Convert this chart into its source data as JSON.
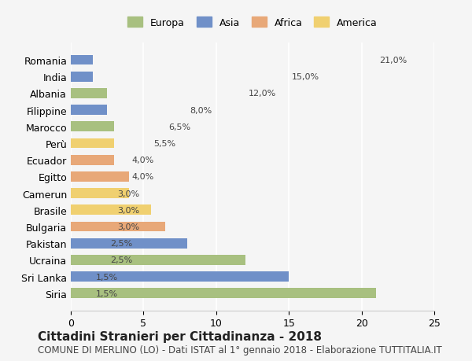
{
  "countries": [
    "Romania",
    "India",
    "Albania",
    "Filippine",
    "Marocco",
    "Perù",
    "Ecuador",
    "Egitto",
    "Camerun",
    "Brasile",
    "Bulgaria",
    "Pakistan",
    "Ucraina",
    "Sri Lanka",
    "Siria"
  ],
  "values": [
    21.0,
    15.0,
    12.0,
    8.0,
    6.5,
    5.5,
    4.0,
    4.0,
    3.0,
    3.0,
    3.0,
    2.5,
    2.5,
    1.5,
    1.5
  ],
  "continents": [
    "Europa",
    "Asia",
    "Europa",
    "Asia",
    "Africa",
    "America",
    "America",
    "Africa",
    "Africa",
    "America",
    "Europa",
    "Asia",
    "Europa",
    "Asia",
    "Asia"
  ],
  "continent_colors": {
    "Europa": "#a8c080",
    "Asia": "#7090c8",
    "Africa": "#e8a878",
    "America": "#f0d070"
  },
  "legend_order": [
    "Europa",
    "Asia",
    "Africa",
    "America"
  ],
  "title": "Cittadini Stranieri per Cittadinanza - 2018",
  "subtitle": "COMUNE DI MERLINO (LO) - Dati ISTAT al 1° gennaio 2018 - Elaborazione TUTTITALIA.IT",
  "xlim": [
    0,
    25
  ],
  "xticks": [
    0,
    5,
    10,
    15,
    20,
    25
  ],
  "background_color": "#f5f5f5",
  "bar_edge_color": "none",
  "title_fontsize": 11,
  "subtitle_fontsize": 8.5,
  "label_fontsize": 8,
  "legend_fontsize": 9,
  "tick_fontsize": 9
}
